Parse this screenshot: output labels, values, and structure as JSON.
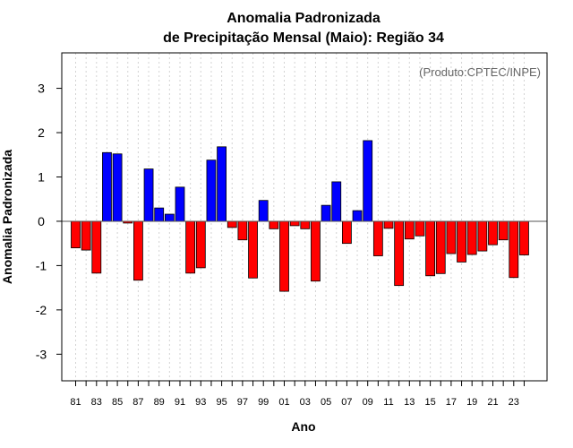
{
  "chart_data": {
    "type": "bar",
    "title_line1": "Anomalia Padronizada",
    "title_line2": "de Precipitação Mensal (Maio): Região 34",
    "xlabel": "Ano",
    "ylabel": "Anomalia Padronizada",
    "annotation": "(Produto:CPTEC/INPE)",
    "ylim": [
      -3.6,
      3.8
    ],
    "yticks": [
      -3,
      -2,
      -1,
      0,
      1,
      2,
      3
    ],
    "grid": true,
    "colors": {
      "positive": "#0000ff",
      "negative": "#ff0000",
      "grid": "#d3d3d3",
      "zero_line": "#555555"
    },
    "categories": [
      "81",
      "82",
      "83",
      "84",
      "85",
      "86",
      "87",
      "88",
      "89",
      "90",
      "91",
      "92",
      "93",
      "94",
      "95",
      "96",
      "97",
      "98",
      "99",
      "00",
      "01",
      "02",
      "03",
      "04",
      "05",
      "06",
      "07",
      "08",
      "09",
      "10",
      "11",
      "12",
      "13",
      "14",
      "15",
      "16",
      "17",
      "18",
      "19",
      "20",
      "21",
      "22",
      "23",
      "24"
    ],
    "values": [
      -0.6,
      -0.65,
      -1.17,
      1.55,
      1.52,
      -0.04,
      -1.33,
      1.18,
      0.3,
      0.16,
      0.77,
      -1.17,
      -1.05,
      1.38,
      1.68,
      -0.14,
      -0.42,
      -1.28,
      0.47,
      -0.17,
      -1.58,
      -0.1,
      -0.17,
      -1.35,
      0.36,
      0.89,
      -0.5,
      0.24,
      1.82,
      -0.78,
      -0.16,
      -1.45,
      -0.4,
      -0.33,
      -1.23,
      -1.18,
      -0.73,
      -0.92,
      -0.75,
      -0.67,
      -0.53,
      -0.42,
      -1.27,
      -0.76
    ],
    "tick_labels": [
      "81",
      "83",
      "85",
      "87",
      "89",
      "91",
      "93",
      "95",
      "97",
      "99",
      "01",
      "03",
      "05",
      "07",
      "09",
      "11",
      "13",
      "15",
      "17",
      "19",
      "21",
      "23"
    ]
  }
}
